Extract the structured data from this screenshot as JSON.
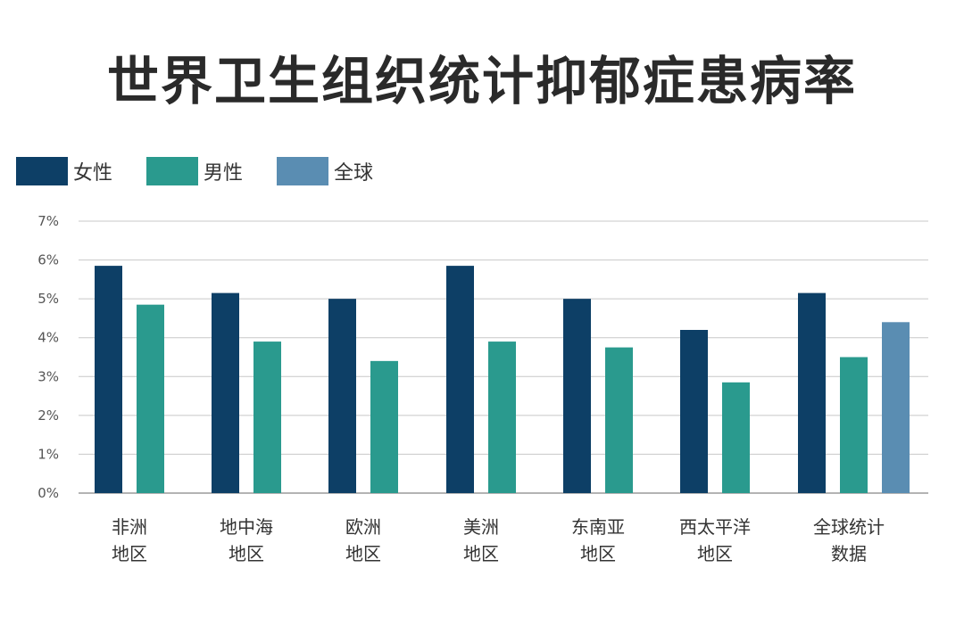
{
  "title": "世界卫生组织统计抑郁症患病率",
  "colors": {
    "female": "#0d3f66",
    "male": "#2a9a8e",
    "global": "#5a8db2",
    "grid": "#c8c8c8",
    "axis": "#9a9a9a"
  },
  "chart_data": {
    "type": "bar",
    "title": "世界卫生组织统计抑郁症患病率",
    "xlabel": "",
    "ylabel": "",
    "ylim": [
      0,
      7
    ],
    "yticks": [
      "0%",
      "1%",
      "2%",
      "3%",
      "4%",
      "5%",
      "6%",
      "7%"
    ],
    "grid": true,
    "legend_position": "top-left",
    "categories": [
      [
        "非洲",
        "地区"
      ],
      [
        "地中海",
        "地区"
      ],
      [
        "欧洲",
        "地区"
      ],
      [
        "美洲",
        "地区"
      ],
      [
        "东南亚",
        "地区"
      ],
      [
        "西太平洋",
        "地区"
      ],
      [
        "全球统计",
        "数据"
      ]
    ],
    "series": [
      {
        "name": "女性",
        "color": "#0d3f66",
        "values": [
          5.85,
          5.15,
          5.0,
          5.85,
          5.0,
          4.2,
          5.15
        ]
      },
      {
        "name": "男性",
        "color": "#2a9a8e",
        "values": [
          4.85,
          3.9,
          3.4,
          3.9,
          3.75,
          2.85,
          3.5
        ]
      },
      {
        "name": "全球",
        "color": "#5a8db2",
        "values": [
          null,
          null,
          null,
          null,
          null,
          null,
          4.4
        ]
      }
    ]
  }
}
